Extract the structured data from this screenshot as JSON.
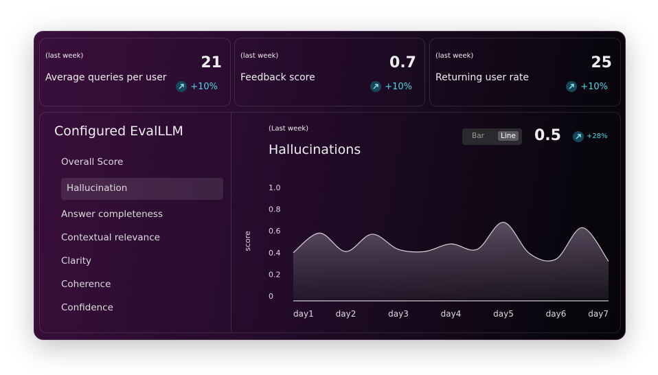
{
  "cards": [
    {
      "period": "(last week)",
      "label": "Average queries per user",
      "value": "21",
      "change": "+10%"
    },
    {
      "period": "(last week)",
      "label": "Feedback score",
      "value": "0.7",
      "change": "+10%"
    },
    {
      "period": "(last week)",
      "label": "Returning user rate",
      "value": "25",
      "change": "+10%"
    }
  ],
  "sidebar": {
    "title": "Configured EvalLLM",
    "items": [
      "Overall Score",
      "Hallucination",
      "Answer completeness",
      "Contextual relevance",
      "Clarity",
      "Coherence",
      "Confidence"
    ],
    "selected": 1
  },
  "toggle": {
    "options": [
      "Bar",
      "Line"
    ],
    "active": 1
  },
  "summary": {
    "value": "0.5",
    "change": "+28%"
  },
  "chart_data": {
    "type": "area",
    "subtitle": "(Last week)",
    "title": "Hallucinations",
    "ylabel": "score",
    "categories": [
      "day1",
      null,
      "day2",
      null,
      "day3",
      null,
      "day4",
      null,
      "day5",
      null,
      "day6",
      null,
      "day7"
    ],
    "values": [
      0.4,
      0.58,
      0.41,
      0.57,
      0.43,
      0.41,
      0.48,
      0.43,
      0.68,
      0.39,
      0.34,
      0.63,
      0.32
    ],
    "ylim": [
      0,
      1
    ],
    "yticks": [
      0,
      0.2,
      0.4,
      0.6,
      0.8,
      {
        "value": 1,
        "label": "1.0"
      }
    ],
    "color": "#d8d4dc"
  }
}
